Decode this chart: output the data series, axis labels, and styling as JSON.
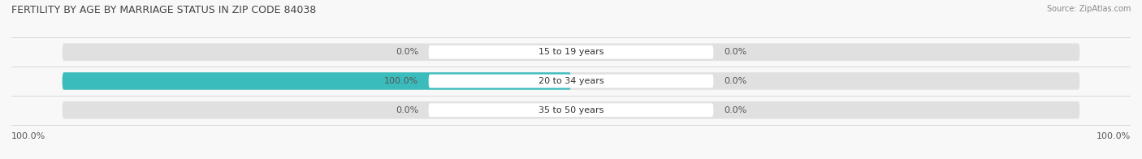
{
  "title": "FERTILITY BY AGE BY MARRIAGE STATUS IN ZIP CODE 84038",
  "source": "Source: ZipAtlas.com",
  "categories": [
    "15 to 19 years",
    "20 to 34 years",
    "35 to 50 years"
  ],
  "married_values": [
    0.0,
    100.0,
    0.0
  ],
  "unmarried_values": [
    0.0,
    0.0,
    0.0
  ],
  "married_color": "#3BBCBC",
  "unmarried_color": "#F4A8B4",
  "bar_bg_color": "#E0E0E0",
  "bg_color": "#F8F8F8",
  "bar_height": 0.6,
  "title_fontsize": 9,
  "label_fontsize": 8,
  "source_fontsize": 7,
  "bottom_left_label": "100.0%",
  "bottom_right_label": "100.0%",
  "center_label_color": "#FFFFFF",
  "value_label_color": "#555555",
  "title_color": "#444444",
  "grid_color": "#CCCCCC"
}
